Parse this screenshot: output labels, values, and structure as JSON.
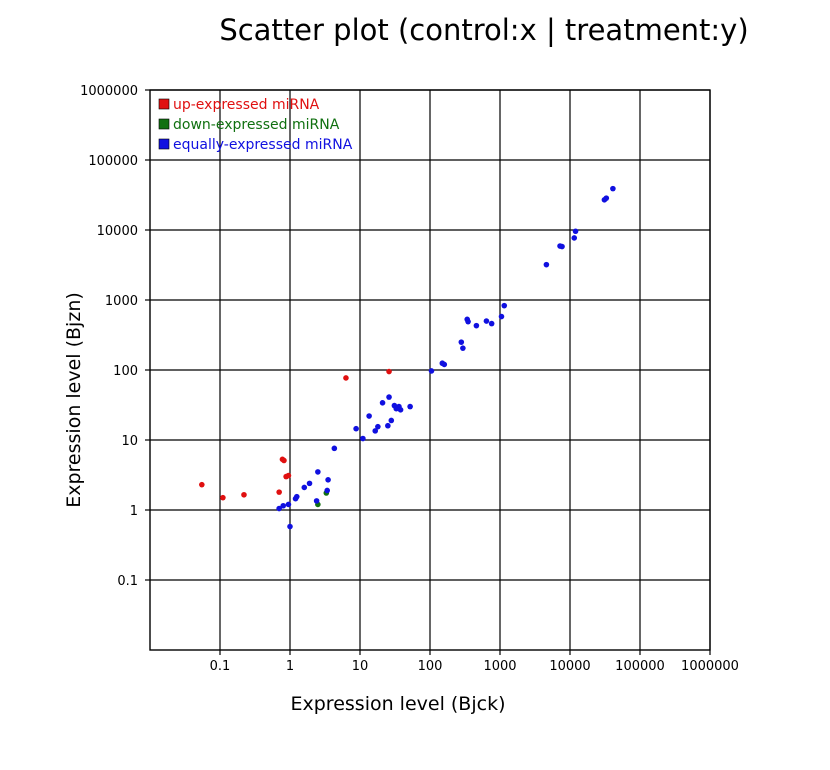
{
  "chart_data": {
    "type": "scatter",
    "title": "Scatter plot (control:x | treatment:y)",
    "xlabel": "Expression level (Bjck)",
    "ylabel": "Expression level (Bjzn)",
    "xscale": "log",
    "yscale": "log",
    "xlim": [
      0.01,
      1000000
    ],
    "ylim": [
      0.01,
      1000000
    ],
    "grid": true,
    "legend_position": "top-left",
    "x_tick_labels": [
      "0.1",
      "1",
      "10",
      "100",
      "1000",
      "10000",
      "100000",
      "1000000"
    ],
    "y_tick_labels": [
      "0.1",
      "1",
      "10",
      "100",
      "1000",
      "10000",
      "100000",
      "1000000"
    ],
    "series": [
      {
        "name": "up-expressed miRNA",
        "color": "#e01010",
        "points": [
          [
            0.055,
            2.3
          ],
          [
            0.11,
            1.5
          ],
          [
            0.22,
            1.65
          ],
          [
            0.7,
            1.8
          ],
          [
            0.78,
            5.3
          ],
          [
            0.82,
            5.1
          ],
          [
            0.88,
            3.0
          ],
          [
            0.95,
            3.1
          ],
          [
            6.3,
            77
          ],
          [
            26,
            95
          ]
        ]
      },
      {
        "name": "down-expressed miRNA",
        "color": "#107010",
        "points": [
          [
            2.5,
            1.2
          ],
          [
            3.3,
            1.75
          ]
        ]
      },
      {
        "name": "equally-expressed miRNA",
        "color": "#1010e0",
        "points": [
          [
            0.7,
            1.05
          ],
          [
            0.8,
            1.15
          ],
          [
            0.95,
            1.2
          ],
          [
            1.0,
            0.58
          ],
          [
            1.2,
            1.45
          ],
          [
            1.25,
            1.55
          ],
          [
            1.6,
            2.1
          ],
          [
            1.9,
            2.4
          ],
          [
            2.4,
            1.35
          ],
          [
            2.5,
            3.5
          ],
          [
            3.4,
            1.9
          ],
          [
            3.5,
            2.7
          ],
          [
            4.3,
            7.6
          ],
          [
            8.8,
            14.5
          ],
          [
            11,
            10.5
          ],
          [
            13.5,
            22
          ],
          [
            16.5,
            13.5
          ],
          [
            18,
            15.5
          ],
          [
            21,
            34
          ],
          [
            25,
            16
          ],
          [
            26,
            41
          ],
          [
            28,
            19
          ],
          [
            31,
            31
          ],
          [
            33,
            28
          ],
          [
            36,
            30
          ],
          [
            38,
            27
          ],
          [
            52,
            30
          ],
          [
            105,
            97
          ],
          [
            150,
            125
          ],
          [
            160,
            120
          ],
          [
            280,
            250
          ],
          [
            295,
            205
          ],
          [
            340,
            530
          ],
          [
            350,
            490
          ],
          [
            460,
            430
          ],
          [
            640,
            500
          ],
          [
            760,
            460
          ],
          [
            1050,
            580
          ],
          [
            1150,
            830
          ],
          [
            4600,
            3200
          ],
          [
            7200,
            5900
          ],
          [
            7700,
            5800
          ],
          [
            11500,
            7700
          ],
          [
            12000,
            9600
          ],
          [
            31000,
            27000
          ],
          [
            33000,
            28500
          ],
          [
            41000,
            39000
          ]
        ]
      }
    ]
  }
}
